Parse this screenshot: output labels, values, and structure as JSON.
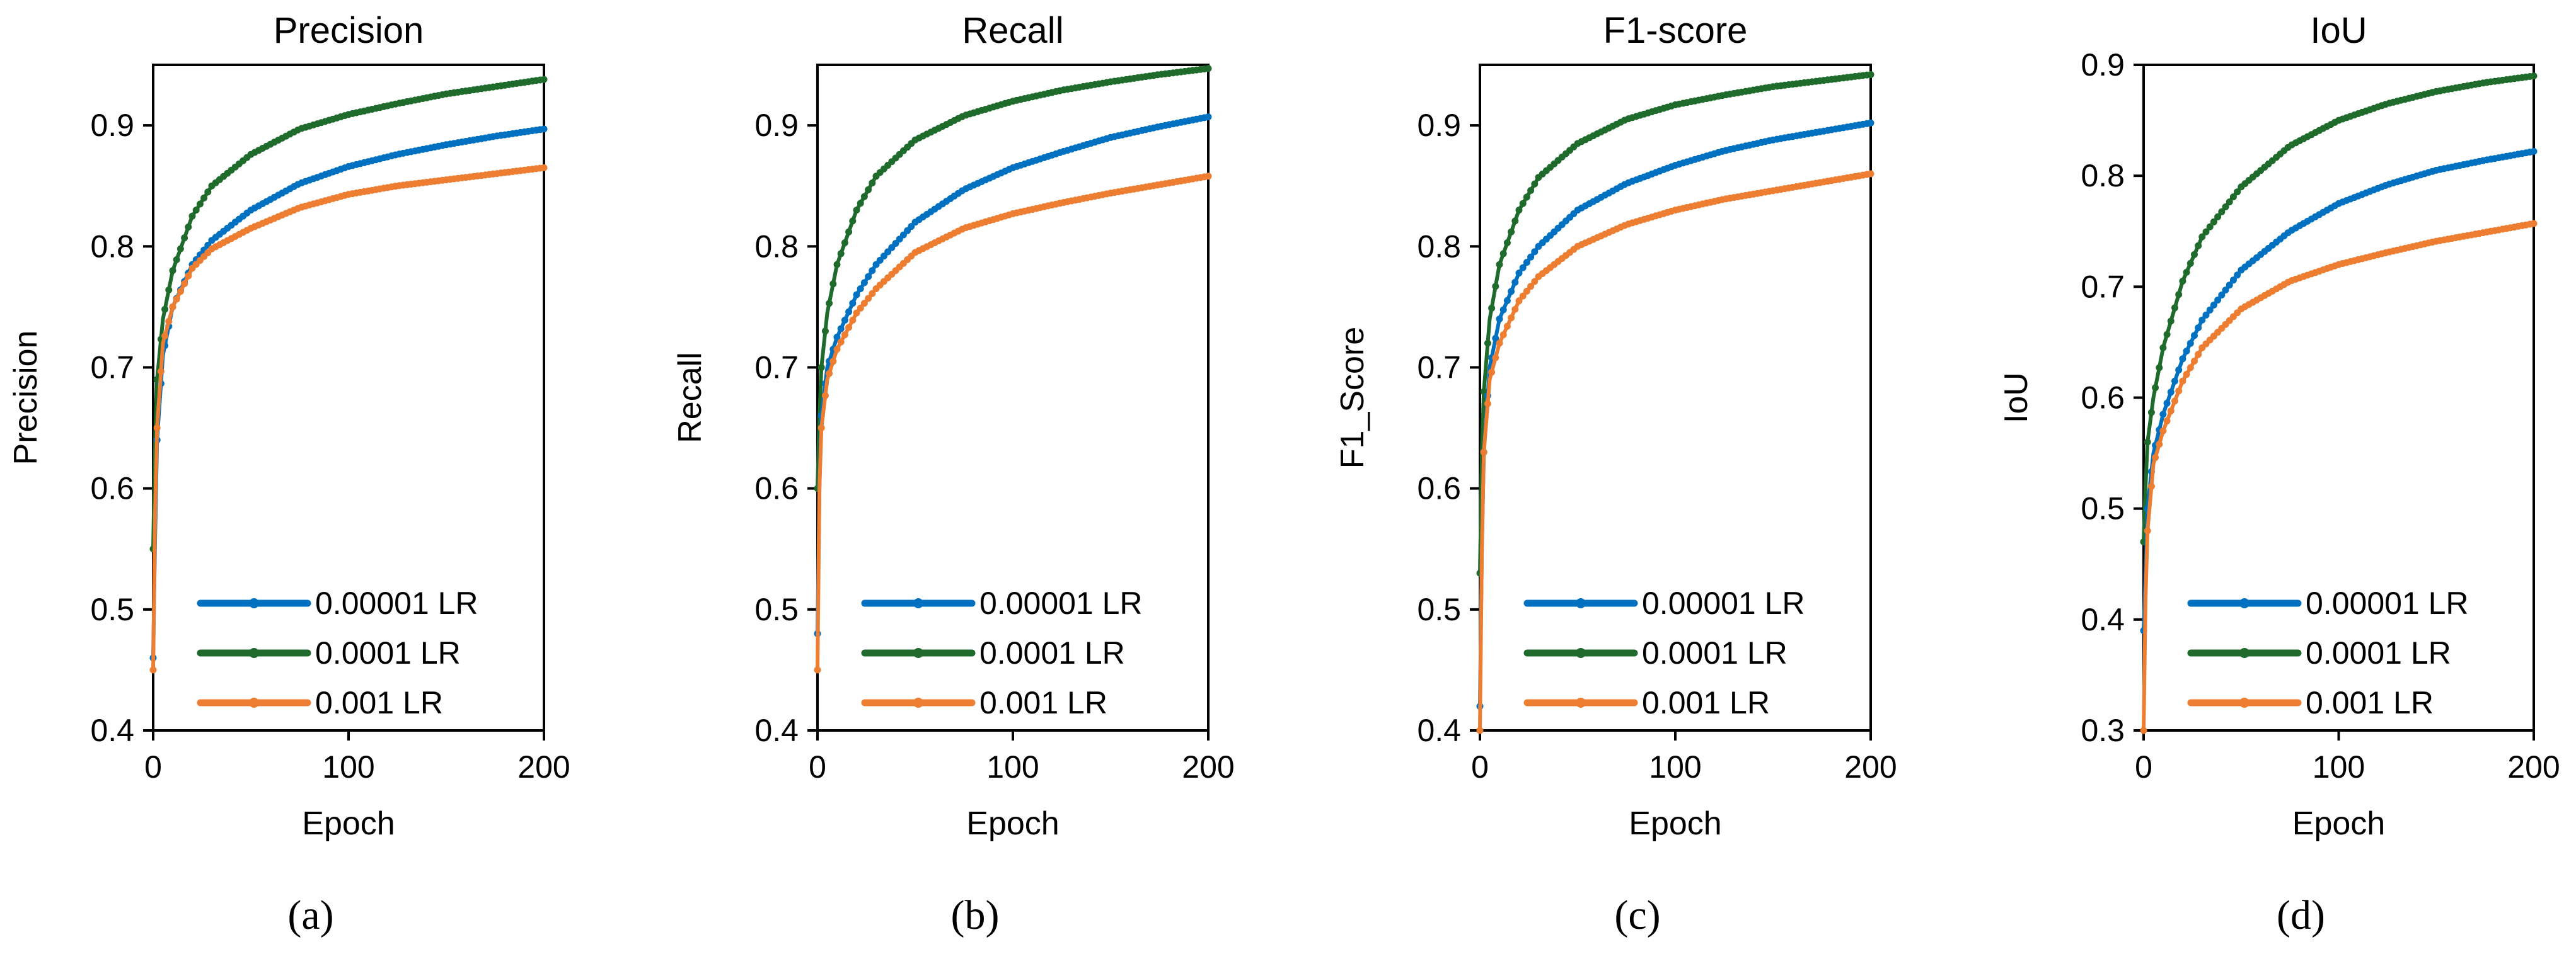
{
  "figure": {
    "colors": {
      "lr_00001": "#0070C0",
      "lr_0001": "#1E6B2C",
      "lr_001": "#ED7D31",
      "axis": "#000000"
    }
  },
  "chart_data": [
    {
      "type": "line",
      "title": "Precision",
      "xlabel": "Epoch",
      "ylabel": "Precision",
      "caption": "(a)",
      "xlim": [
        0,
        200
      ],
      "ylim": [
        0.4,
        0.95
      ],
      "xticks": [
        0,
        100,
        200
      ],
      "yticks": [
        0.4,
        0.5,
        0.6,
        0.7,
        0.8,
        0.9
      ],
      "ytick_labels": [
        "0.4",
        "0.5",
        "0.6",
        "0.7",
        "0.8",
        "0.9"
      ],
      "legend_position": "bottom-right",
      "x": [
        0,
        1,
        2,
        5,
        10,
        20,
        30,
        50,
        75,
        100,
        125,
        150,
        175,
        200
      ],
      "series": [
        {
          "name": "0.00001 LR",
          "color": "#0070C0",
          "values": [
            0.46,
            0.56,
            0.64,
            0.71,
            0.75,
            0.785,
            0.805,
            0.83,
            0.852,
            0.866,
            0.876,
            0.884,
            0.891,
            0.897
          ]
        },
        {
          "name": "0.0001 LR",
          "color": "#1E6B2C",
          "values": [
            0.55,
            0.64,
            0.69,
            0.74,
            0.78,
            0.825,
            0.85,
            0.876,
            0.897,
            0.909,
            0.918,
            0.926,
            0.932,
            0.938
          ]
        },
        {
          "name": "0.001 LR",
          "color": "#ED7D31",
          "values": [
            0.45,
            0.58,
            0.65,
            0.72,
            0.75,
            0.782,
            0.798,
            0.815,
            0.832,
            0.843,
            0.85,
            0.855,
            0.86,
            0.865
          ]
        }
      ]
    },
    {
      "type": "line",
      "title": "Recall",
      "xlabel": "Epoch",
      "ylabel": "Recall",
      "caption": "(b)",
      "xlim": [
        0,
        200
      ],
      "ylim": [
        0.4,
        0.95
      ],
      "xticks": [
        0,
        100,
        200
      ],
      "yticks": [
        0.4,
        0.5,
        0.6,
        0.7,
        0.8,
        0.9
      ],
      "ytick_labels": [
        "0.4",
        "0.5",
        "0.6",
        "0.7",
        "0.8",
        "0.9"
      ],
      "legend_position": "bottom-right",
      "x": [
        0,
        1,
        2,
        5,
        10,
        20,
        30,
        50,
        75,
        100,
        125,
        150,
        175,
        200
      ],
      "series": [
        {
          "name": "0.00001 LR",
          "color": "#0070C0",
          "values": [
            0.48,
            0.6,
            0.66,
            0.7,
            0.725,
            0.76,
            0.785,
            0.82,
            0.847,
            0.865,
            0.878,
            0.89,
            0.899,
            0.907
          ]
        },
        {
          "name": "0.0001 LR",
          "color": "#1E6B2C",
          "values": [
            0.6,
            0.66,
            0.7,
            0.745,
            0.785,
            0.83,
            0.858,
            0.888,
            0.908,
            0.92,
            0.929,
            0.936,
            0.942,
            0.947
          ]
        },
        {
          "name": "0.001 LR",
          "color": "#ED7D31",
          "values": [
            0.45,
            0.6,
            0.65,
            0.69,
            0.715,
            0.745,
            0.765,
            0.795,
            0.815,
            0.827,
            0.836,
            0.844,
            0.851,
            0.858
          ]
        }
      ]
    },
    {
      "type": "line",
      "title": "F1-score",
      "xlabel": "Epoch",
      "ylabel": "F1_Score",
      "caption": "(c)",
      "xlim": [
        0,
        200
      ],
      "ylim": [
        0.4,
        0.95
      ],
      "xticks": [
        0,
        100,
        200
      ],
      "yticks": [
        0.4,
        0.5,
        0.6,
        0.7,
        0.8,
        0.9
      ],
      "ytick_labels": [
        "0.4",
        "0.5",
        "0.6",
        "0.7",
        "0.8",
        "0.9"
      ],
      "legend_position": "bottom-right",
      "x": [
        0,
        1,
        2,
        5,
        10,
        20,
        30,
        50,
        75,
        100,
        125,
        150,
        175,
        200
      ],
      "series": [
        {
          "name": "0.00001 LR",
          "color": "#0070C0",
          "values": [
            0.42,
            0.55,
            0.63,
            0.7,
            0.74,
            0.778,
            0.8,
            0.83,
            0.852,
            0.867,
            0.879,
            0.888,
            0.895,
            0.902
          ]
        },
        {
          "name": "0.0001 LR",
          "color": "#1E6B2C",
          "values": [
            0.53,
            0.63,
            0.68,
            0.74,
            0.785,
            0.83,
            0.857,
            0.885,
            0.905,
            0.917,
            0.925,
            0.932,
            0.937,
            0.942
          ]
        },
        {
          "name": "0.001 LR",
          "color": "#ED7D31",
          "values": [
            0.4,
            0.55,
            0.63,
            0.69,
            0.72,
            0.755,
            0.775,
            0.8,
            0.818,
            0.83,
            0.839,
            0.846,
            0.853,
            0.86
          ]
        }
      ]
    },
    {
      "type": "line",
      "title": "IoU",
      "xlabel": "Epoch",
      "ylabel": "IoU",
      "caption": "(d)",
      "xlim": [
        0,
        200
      ],
      "ylim": [
        0.3,
        0.9
      ],
      "xticks": [
        0,
        100,
        200
      ],
      "yticks": [
        0.3,
        0.4,
        0.5,
        0.6,
        0.7,
        0.8,
        0.9
      ],
      "ytick_labels": [
        "0.3",
        "0.4",
        "0.5",
        "0.6",
        "0.7",
        "0.8",
        "0.9"
      ],
      "legend_position": "bottom-right",
      "x": [
        0,
        1,
        2,
        5,
        10,
        20,
        30,
        50,
        75,
        100,
        125,
        150,
        175,
        200
      ],
      "series": [
        {
          "name": "0.00001 LR",
          "color": "#0070C0",
          "values": [
            0.39,
            0.44,
            0.5,
            0.55,
            0.585,
            0.635,
            0.67,
            0.715,
            0.75,
            0.775,
            0.792,
            0.805,
            0.814,
            0.822
          ]
        },
        {
          "name": "0.0001 LR",
          "color": "#1E6B2C",
          "values": [
            0.47,
            0.52,
            0.56,
            0.6,
            0.645,
            0.705,
            0.745,
            0.79,
            0.827,
            0.85,
            0.865,
            0.876,
            0.884,
            0.89
          ]
        },
        {
          "name": "0.001 LR",
          "color": "#ED7D31",
          "values": [
            0.3,
            0.42,
            0.48,
            0.54,
            0.57,
            0.615,
            0.645,
            0.68,
            0.705,
            0.72,
            0.731,
            0.741,
            0.749,
            0.757
          ]
        }
      ]
    }
  ]
}
